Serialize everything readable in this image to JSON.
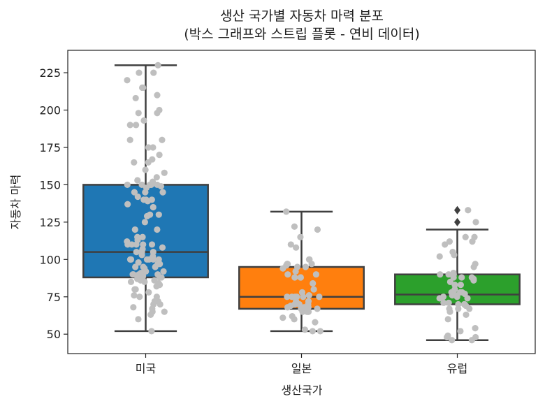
{
  "chart_data": {
    "type": "boxplot",
    "title_lines": [
      "생산 국가별 자동차 마력 분포",
      "(박스 그래프와 스트립 플롯 - 연비 데이터)"
    ],
    "xlabel": "생산국가",
    "ylabel": "자동차 마력",
    "ylim": [
      37,
      240
    ],
    "yticks": [
      50,
      75,
      100,
      125,
      150,
      175,
      200,
      225
    ],
    "categories": [
      "미국",
      "일본",
      "유럽"
    ],
    "colors": {
      "미국": "#1f77b4",
      "일본": "#ff7f0e",
      "유럽": "#2ca02c",
      "points": "#bfbfbf",
      "box_line": "#3f3f3f"
    },
    "boxes": [
      {
        "category": "미국",
        "whisker_low": 52,
        "q1": 88,
        "median": 105,
        "q3": 150,
        "whisker_high": 230,
        "outliers": []
      },
      {
        "category": "일본",
        "whisker_low": 52,
        "q1": 67,
        "median": 75,
        "q3": 95,
        "whisker_high": 132,
        "outliers": []
      },
      {
        "category": "유럽",
        "whisker_low": 46,
        "q1": 70,
        "median": 76.5,
        "q3": 90,
        "whisker_high": 120,
        "outliers": [
          125,
          133
        ]
      }
    ],
    "points": {
      "미국": [
        52,
        60,
        63,
        65,
        65,
        67,
        68,
        70,
        70,
        72,
        72,
        75,
        75,
        76,
        78,
        80,
        80,
        82,
        83,
        84,
        85,
        85,
        86,
        86,
        87,
        88,
        88,
        88,
        88,
        89,
        90,
        90,
        90,
        90,
        91,
        92,
        92,
        94,
        95,
        95,
        95,
        97,
        97,
        98,
        100,
        100,
        100,
        100,
        100,
        100,
        102,
        103,
        105,
        105,
        105,
        105,
        107,
        108,
        110,
        110,
        110,
        110,
        110,
        112,
        113,
        115,
        115,
        120,
        120,
        125,
        129,
        130,
        130,
        135,
        137,
        139,
        140,
        140,
        140,
        142,
        145,
        145,
        145,
        148,
        149,
        150,
        150,
        150,
        150,
        150,
        150,
        152,
        153,
        155,
        158,
        160,
        165,
        165,
        167,
        170,
        175,
        175,
        180,
        180,
        190,
        190,
        193,
        198,
        198,
        200,
        208,
        210,
        215,
        215,
        220,
        225,
        225,
        230
      ],
      "일본": [
        52,
        52,
        53,
        58,
        60,
        61,
        62,
        65,
        65,
        65,
        65,
        67,
        67,
        67,
        68,
        68,
        68,
        69,
        70,
        70,
        70,
        72,
        72,
        75,
        75,
        75,
        75,
        75,
        75,
        76,
        78,
        80,
        84,
        88,
        88,
        88,
        90,
        90,
        92,
        94,
        95,
        95,
        96,
        97,
        97,
        97,
        97,
        100,
        100,
        108,
        110,
        115,
        120,
        122,
        132
      ],
      "유럽": [
        46,
        46,
        48,
        48,
        49,
        52,
        54,
        60,
        63,
        65,
        67,
        67,
        67,
        69,
        70,
        70,
        70,
        71,
        71,
        74,
        74,
        75,
        75,
        76,
        76,
        77,
        78,
        78,
        78,
        80,
        83,
        83,
        85,
        86,
        87,
        88,
        88,
        88,
        90,
        90,
        90,
        91,
        95,
        97,
        102,
        103,
        105,
        110,
        112,
        112,
        115,
        115,
        125,
        133
      ]
    }
  }
}
